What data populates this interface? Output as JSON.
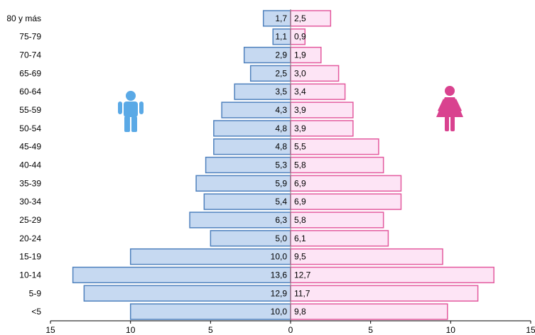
{
  "chart_data": {
    "type": "bar",
    "orientation": "horizontal",
    "layout": "population-pyramid",
    "categories": [
      "<5",
      "5-9",
      "10-14",
      "15-19",
      "20-24",
      "25-29",
      "30-34",
      "35-39",
      "40-44",
      "45-49",
      "50-54",
      "55-59",
      "60-64",
      "65-69",
      "70-74",
      "75-79",
      "80 y más"
    ],
    "series": [
      {
        "side": "left",
        "values": [
          10.0,
          12.9,
          13.6,
          10.0,
          5.0,
          6.3,
          5.4,
          5.9,
          5.3,
          4.8,
          4.8,
          4.3,
          3.5,
          2.5,
          2.9,
          1.1,
          1.7
        ],
        "labels": [
          "10,0",
          "12,9",
          "13,6",
          "10,0",
          "5,0",
          "6,3",
          "5,4",
          "5,9",
          "5,3",
          "4,8",
          "4,8",
          "4,3",
          "3,5",
          "2,5",
          "2,9",
          "1,1",
          "1,7"
        ],
        "color": "#c6d9f1",
        "border": "#4f81bd",
        "icon": "male-person-icon",
        "icon_color": "#5aa9e6"
      },
      {
        "side": "right",
        "values": [
          9.8,
          11.7,
          12.7,
          9.5,
          6.1,
          5.8,
          6.9,
          6.9,
          5.8,
          5.5,
          3.9,
          3.9,
          3.4,
          3.0,
          1.9,
          0.9,
          2.5
        ],
        "labels": [
          "9,8",
          "11,7",
          "12,7",
          "9,5",
          "6,1",
          "5,8",
          "6,9",
          "6,9",
          "5,8",
          "5,5",
          "3,9",
          "3,9",
          "3,4",
          "3,0",
          "1,9",
          "0,9",
          "2,5"
        ],
        "color": "#fde4f5",
        "border": "#e35a9e",
        "icon": "female-person-icon",
        "icon_color": "#d9428f"
      }
    ],
    "xlim": [
      -15,
      15
    ],
    "x_ticks": [
      {
        "value": -15,
        "label": "15"
      },
      {
        "value": -10,
        "label": "10"
      },
      {
        "value": -5,
        "label": "5"
      },
      {
        "value": 0,
        "label": "0"
      },
      {
        "value": 5,
        "label": "5"
      },
      {
        "value": 10,
        "label": "10"
      },
      {
        "value": 15,
        "label": "15"
      }
    ],
    "grid": false,
    "legend": "none"
  }
}
